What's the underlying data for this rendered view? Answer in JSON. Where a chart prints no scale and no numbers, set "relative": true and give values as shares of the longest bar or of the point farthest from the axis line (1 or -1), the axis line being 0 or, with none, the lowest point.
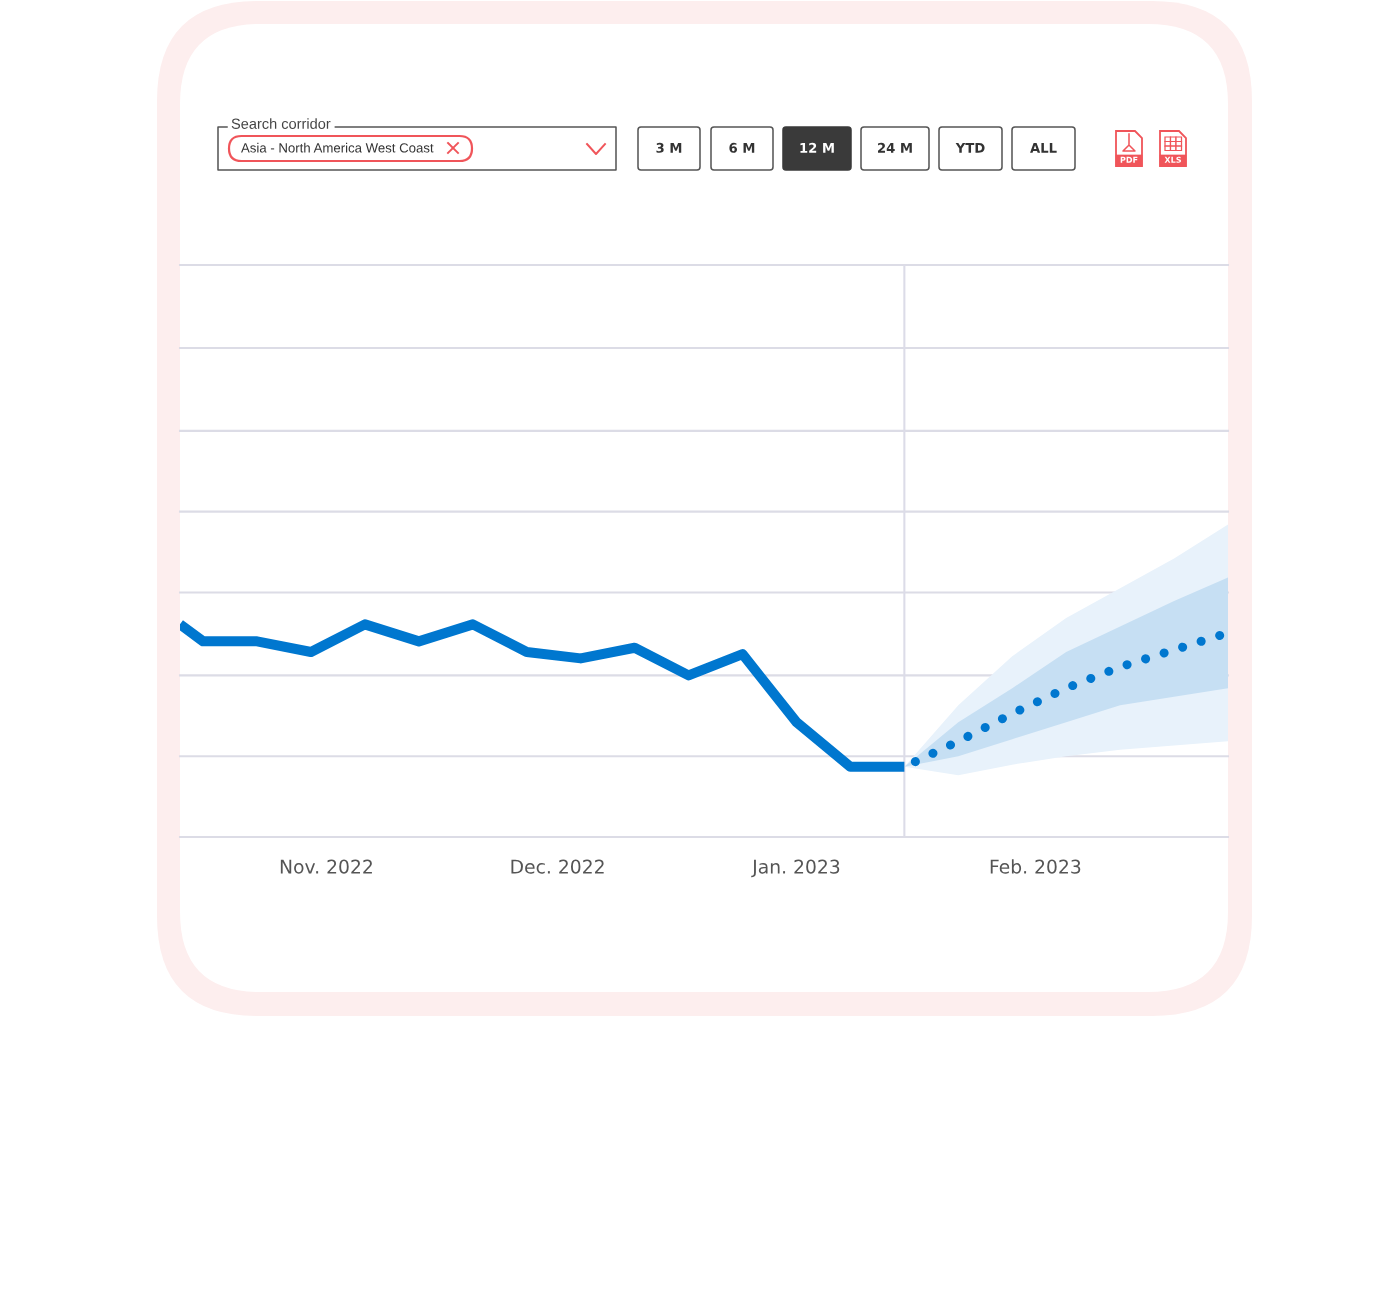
{
  "chart_data": {
    "type": "line",
    "relative": true,
    "xlim": [
      "2022-10-13",
      "2023-02-26"
    ],
    "xticks": [
      {
        "value": "2022-11-01",
        "label": "Nov. 2022"
      },
      {
        "value": "2022-12-01",
        "label": "Dec. 2022"
      },
      {
        "value": "2023-01-01",
        "label": "Jan. 2023"
      },
      {
        "value": "2023-02-01",
        "label": "Feb. 2023"
      }
    ],
    "ref_lines": [
      {
        "axis": "x",
        "value": "2023-01-15",
        "color": "#dcdce8"
      },
      {
        "axis": "y",
        "value": 0.38,
        "color": "#dcdce6"
      },
      {
        "axis": "y",
        "value": 0.76,
        "color": "#dcdce6"
      },
      {
        "axis": "y",
        "value": 1.15,
        "color": "#dcdce6"
      },
      {
        "axis": "y",
        "value": 1.53,
        "color": "#dcdce6"
      },
      {
        "axis": "y",
        "value": 1.91,
        "color": "#dcdce6"
      },
      {
        "axis": "y",
        "value": 2.3,
        "color": "#dcdce6"
      },
      {
        "axis": "y",
        "value": 2.69,
        "color": "#dcdce6"
      }
    ],
    "series": [
      {
        "color": "#0077cf",
        "line_style": "solid",
        "x": [
          "2022-10-13",
          "2022-10-16",
          "2022-10-23",
          "2022-10-30",
          "2022-11-06",
          "2022-11-13",
          "2022-11-20",
          "2022-11-27",
          "2022-12-04",
          "2022-12-11",
          "2022-12-18",
          "2022-12-25",
          "2023-01-01",
          "2023-01-08",
          "2023-01-15"
        ],
        "values": [
          1.0,
          0.92,
          0.92,
          0.87,
          1.0,
          0.92,
          1.0,
          0.87,
          0.84,
          0.89,
          0.76,
          0.86,
          0.54,
          0.33,
          0.33
        ]
      },
      {
        "color": "#e8f2fb",
        "x": [
          "2023-01-15",
          "2023-01-22",
          "2023-01-29",
          "2023-02-05",
          "2023-02-12",
          "2023-02-19",
          "2023-02-26"
        ],
        "values": [
          null,
          null,
          null,
          null,
          null,
          null,
          null
        ],
        "lower": [
          0.33,
          0.29,
          0.34,
          0.38,
          0.41,
          0.43,
          0.45
        ],
        "upper": [
          0.33,
          0.62,
          0.85,
          1.03,
          1.17,
          1.31,
          1.47
        ]
      },
      {
        "color": "#c6dff3",
        "x": [
          "2023-01-15",
          "2023-01-22",
          "2023-01-29",
          "2023-02-05",
          "2023-02-12",
          "2023-02-19",
          "2023-02-26"
        ],
        "values": [
          null,
          null,
          null,
          null,
          null,
          null,
          null
        ],
        "lower": [
          0.33,
          0.38,
          0.46,
          0.54,
          0.62,
          0.66,
          0.7
        ],
        "upper": [
          0.33,
          0.54,
          0.7,
          0.87,
          0.99,
          1.11,
          1.22
        ]
      },
      {
        "color": "#0077cf",
        "line_style": "dotted",
        "x": [
          "2023-01-15",
          "2023-01-22",
          "2023-01-29",
          "2023-02-05",
          "2023-02-12",
          "2023-02-19",
          "2023-02-26"
        ],
        "values": [
          0.33,
          0.45,
          0.58,
          0.7,
          0.8,
          0.88,
          0.96
        ]
      }
    ],
    "annotations": [
      "Search corridor",
      "Asia - North America West Coast",
      "3 M",
      "6 M",
      "12 M",
      "24 M",
      "YTD",
      "ALL",
      "PDF",
      "XLS"
    ]
  }
}
